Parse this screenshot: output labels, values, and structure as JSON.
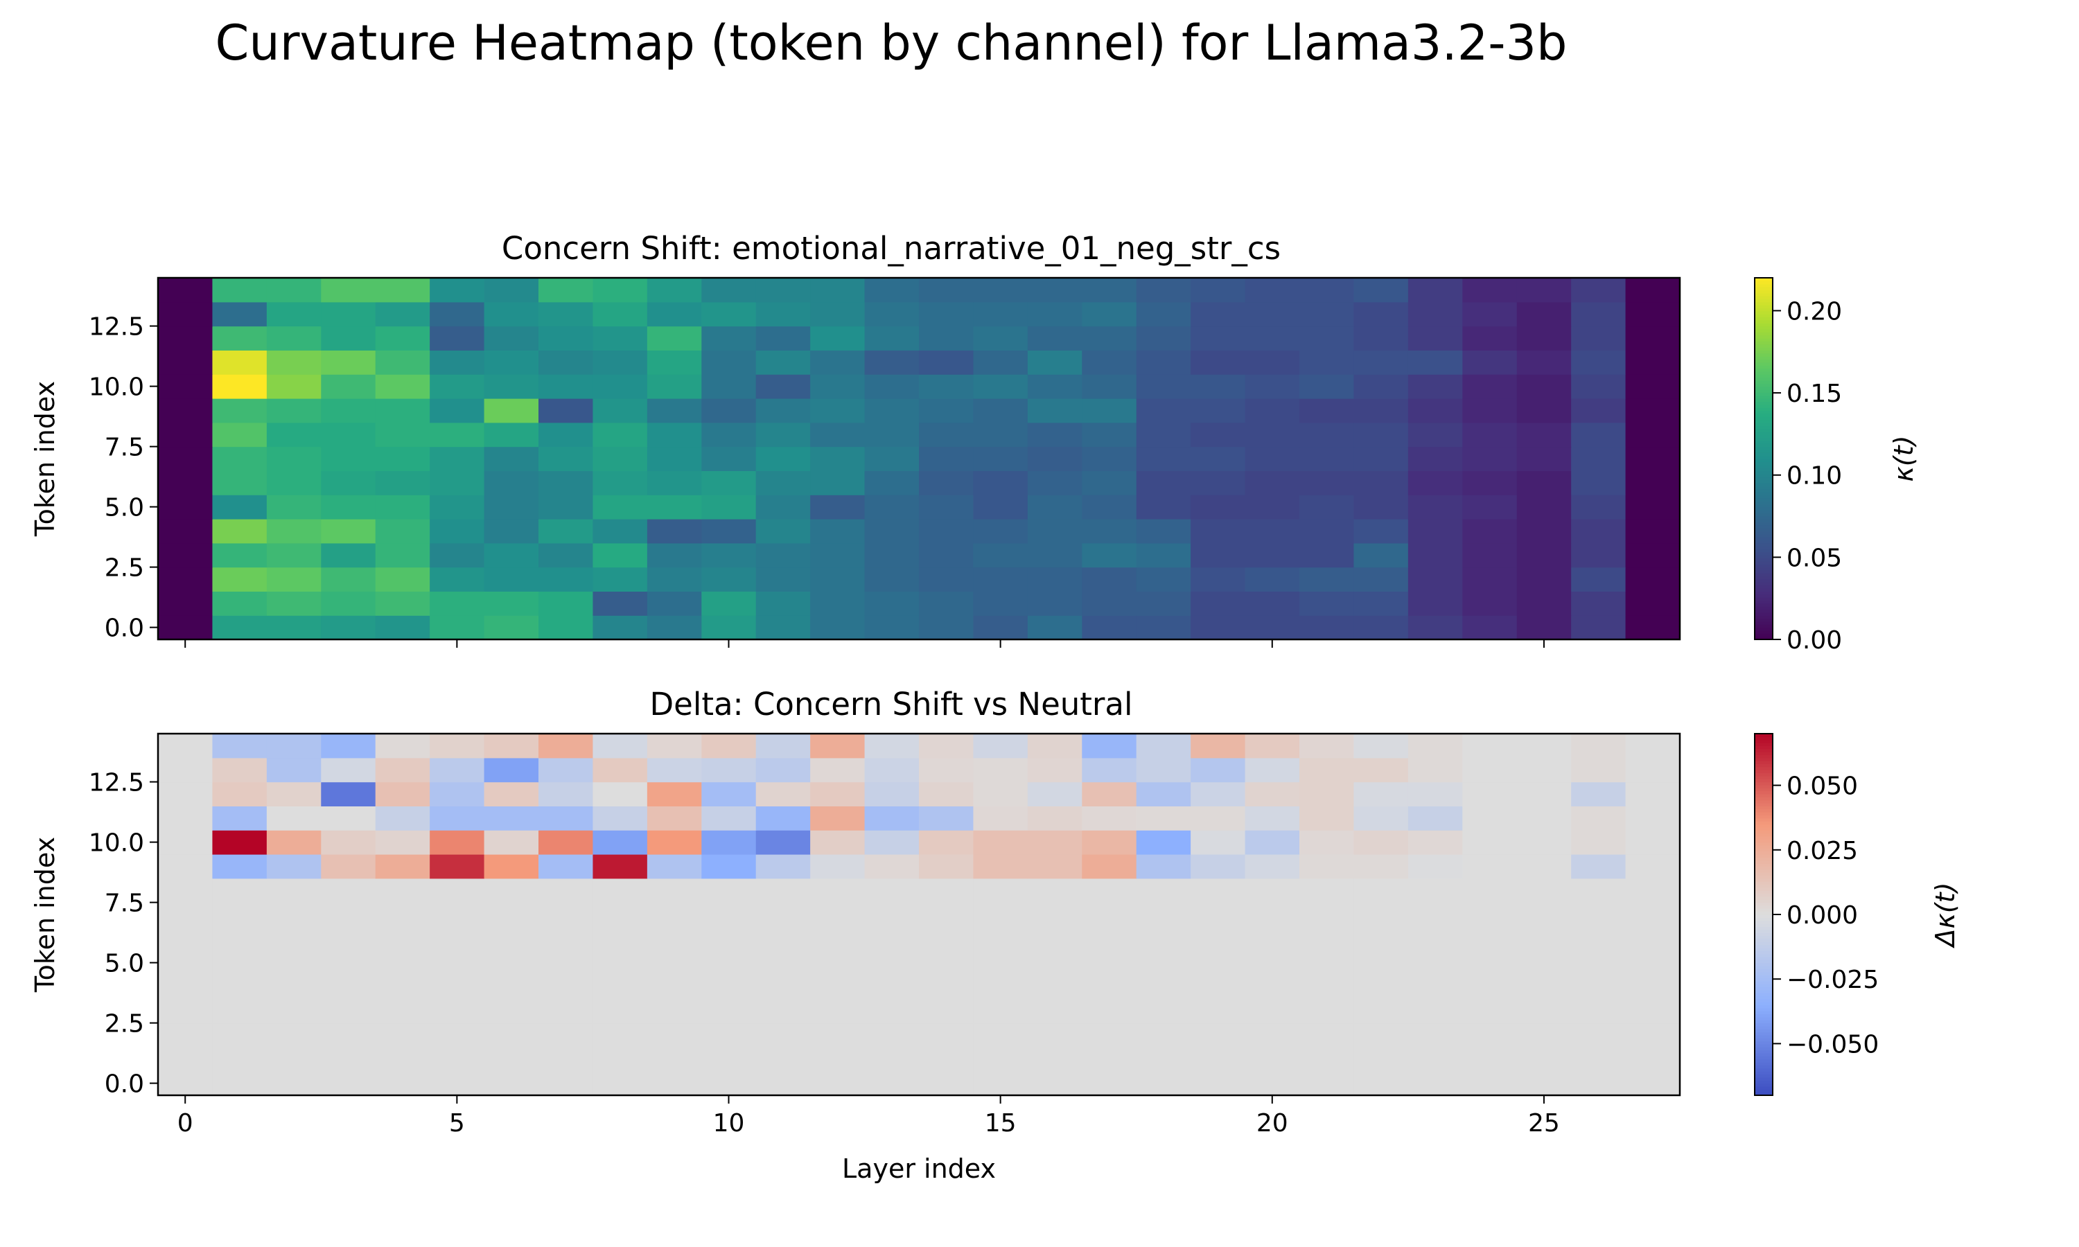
{
  "title": "Curvature Heatmap (token by channel) for Llama3.2-3b",
  "chart_data": [
    {
      "type": "heatmap",
      "title": "Concern Shift: emotional_narrative_01_neg_str_cs",
      "xlabel": "",
      "ylabel": "Token index",
      "x": [
        0,
        1,
        2,
        3,
        4,
        5,
        6,
        7,
        8,
        9,
        10,
        11,
        12,
        13,
        14,
        15,
        16,
        17,
        18,
        19,
        20,
        21,
        22,
        23,
        24,
        25,
        26,
        27
      ],
      "y": [
        0,
        1,
        2,
        3,
        4,
        5,
        6,
        7,
        8,
        9,
        10,
        11,
        12,
        13,
        14
      ],
      "xlim": [
        -0.5,
        27.5
      ],
      "ylim": [
        -0.5,
        14.5
      ],
      "xticks": [
        0,
        5,
        10,
        15,
        20,
        25
      ],
      "yticks": [
        0.0,
        2.5,
        5.0,
        7.5,
        10.0,
        12.5
      ],
      "ytick_labels": [
        "0.0",
        "2.5",
        "5.0",
        "7.5",
        "10.0",
        "12.5"
      ],
      "colormap": "viridis",
      "colorbar_label": "κ(t)",
      "colorbar_ticks": [
        0.0,
        0.05,
        0.1,
        0.15,
        0.2
      ],
      "colorbar_tick_labels": [
        "0.00",
        "0.05",
        "0.10",
        "0.15",
        "0.20"
      ],
      "vmin": 0.0,
      "vmax": 0.22,
      "values": [
        [
          0,
          0.125,
          0.125,
          0.12,
          0.115,
          0.14,
          0.145,
          0.135,
          0.1,
          0.09,
          0.12,
          0.1,
          0.085,
          0.08,
          0.075,
          0.065,
          0.08,
          0.06,
          0.06,
          0.05,
          0.05,
          0.05,
          0.05,
          0.04,
          0.03,
          0.02,
          0.04,
          0
        ],
        [
          0,
          0.145,
          0.15,
          0.145,
          0.15,
          0.14,
          0.14,
          0.135,
          0.065,
          0.08,
          0.125,
          0.1,
          0.085,
          0.08,
          0.075,
          0.07,
          0.07,
          0.065,
          0.065,
          0.05,
          0.05,
          0.055,
          0.055,
          0.035,
          0.025,
          0.02,
          0.04,
          0
        ],
        [
          0,
          0.17,
          0.165,
          0.15,
          0.16,
          0.115,
          0.11,
          0.11,
          0.115,
          0.095,
          0.1,
          0.09,
          0.085,
          0.075,
          0.07,
          0.07,
          0.07,
          0.065,
          0.07,
          0.055,
          0.06,
          0.065,
          0.065,
          0.035,
          0.025,
          0.02,
          0.05,
          0
        ],
        [
          0,
          0.145,
          0.15,
          0.125,
          0.145,
          0.1,
          0.11,
          0.1,
          0.135,
          0.09,
          0.095,
          0.09,
          0.085,
          0.075,
          0.07,
          0.075,
          0.075,
          0.085,
          0.08,
          0.05,
          0.05,
          0.05,
          0.075,
          0.035,
          0.025,
          0.02,
          0.04,
          0
        ],
        [
          0,
          0.175,
          0.16,
          0.165,
          0.145,
          0.11,
          0.095,
          0.12,
          0.105,
          0.065,
          0.07,
          0.1,
          0.085,
          0.075,
          0.07,
          0.07,
          0.075,
          0.075,
          0.07,
          0.05,
          0.05,
          0.05,
          0.055,
          0.035,
          0.025,
          0.02,
          0.04,
          0
        ],
        [
          0,
          0.11,
          0.145,
          0.14,
          0.14,
          0.115,
          0.095,
          0.1,
          0.13,
          0.13,
          0.125,
          0.095,
          0.065,
          0.075,
          0.07,
          0.06,
          0.075,
          0.07,
          0.05,
          0.045,
          0.045,
          0.05,
          0.045,
          0.035,
          0.03,
          0.02,
          0.045,
          0
        ],
        [
          0,
          0.145,
          0.14,
          0.13,
          0.125,
          0.12,
          0.095,
          0.1,
          0.12,
          0.115,
          0.12,
          0.1,
          0.1,
          0.08,
          0.065,
          0.06,
          0.07,
          0.075,
          0.05,
          0.05,
          0.045,
          0.045,
          0.045,
          0.03,
          0.025,
          0.02,
          0.05,
          0
        ],
        [
          0,
          0.145,
          0.14,
          0.135,
          0.135,
          0.12,
          0.1,
          0.115,
          0.125,
          0.11,
          0.095,
          0.11,
          0.1,
          0.09,
          0.07,
          0.07,
          0.065,
          0.07,
          0.055,
          0.055,
          0.05,
          0.05,
          0.05,
          0.035,
          0.03,
          0.025,
          0.05,
          0
        ],
        [
          0,
          0.16,
          0.135,
          0.135,
          0.14,
          0.14,
          0.13,
          0.11,
          0.13,
          0.11,
          0.09,
          0.1,
          0.085,
          0.085,
          0.075,
          0.075,
          0.07,
          0.075,
          0.055,
          0.05,
          0.05,
          0.05,
          0.05,
          0.04,
          0.03,
          0.025,
          0.05,
          0
        ],
        [
          0,
          0.15,
          0.145,
          0.14,
          0.14,
          0.11,
          0.17,
          0.06,
          0.115,
          0.09,
          0.075,
          0.09,
          0.095,
          0.085,
          0.08,
          0.075,
          0.09,
          0.09,
          0.055,
          0.055,
          0.05,
          0.045,
          0.045,
          0.035,
          0.025,
          0.02,
          0.04,
          0
        ],
        [
          0,
          0.22,
          0.18,
          0.15,
          0.165,
          0.12,
          0.115,
          0.11,
          0.11,
          0.125,
          0.085,
          0.065,
          0.09,
          0.08,
          0.085,
          0.09,
          0.08,
          0.075,
          0.06,
          0.06,
          0.055,
          0.06,
          0.05,
          0.04,
          0.025,
          0.02,
          0.045,
          0
        ],
        [
          0,
          0.21,
          0.175,
          0.17,
          0.15,
          0.105,
          0.11,
          0.1,
          0.105,
          0.13,
          0.085,
          0.1,
          0.085,
          0.065,
          0.06,
          0.075,
          0.095,
          0.07,
          0.06,
          0.05,
          0.05,
          0.055,
          0.055,
          0.055,
          0.035,
          0.025,
          0.05,
          0
        ],
        [
          0,
          0.15,
          0.145,
          0.13,
          0.14,
          0.065,
          0.1,
          0.11,
          0.115,
          0.145,
          0.09,
          0.08,
          0.11,
          0.09,
          0.08,
          0.085,
          0.075,
          0.075,
          0.065,
          0.055,
          0.055,
          0.055,
          0.05,
          0.04,
          0.025,
          0.02,
          0.045,
          0
        ],
        [
          0,
          0.08,
          0.13,
          0.13,
          0.12,
          0.075,
          0.11,
          0.115,
          0.13,
          0.11,
          0.115,
          0.105,
          0.1,
          0.085,
          0.08,
          0.08,
          0.08,
          0.085,
          0.07,
          0.055,
          0.055,
          0.055,
          0.05,
          0.04,
          0.03,
          0.02,
          0.045,
          0
        ],
        [
          0,
          0.145,
          0.145,
          0.16,
          0.16,
          0.11,
          0.105,
          0.145,
          0.14,
          0.12,
          0.1,
          0.1,
          0.1,
          0.08,
          0.075,
          0.075,
          0.075,
          0.075,
          0.065,
          0.06,
          0.055,
          0.055,
          0.06,
          0.04,
          0.025,
          0.025,
          0.04,
          0
        ]
      ]
    },
    {
      "type": "heatmap",
      "title": "Delta: Concern Shift vs Neutral",
      "xlabel": "Layer index",
      "ylabel": "Token index",
      "x": [
        0,
        1,
        2,
        3,
        4,
        5,
        6,
        7,
        8,
        9,
        10,
        11,
        12,
        13,
        14,
        15,
        16,
        17,
        18,
        19,
        20,
        21,
        22,
        23,
        24,
        25,
        26,
        27
      ],
      "y": [
        0,
        1,
        2,
        3,
        4,
        5,
        6,
        7,
        8,
        9,
        10,
        11,
        12,
        13,
        14
      ],
      "xlim": [
        -0.5,
        27.5
      ],
      "ylim": [
        -0.5,
        14.5
      ],
      "xticks": [
        0,
        5,
        10,
        15,
        20,
        25
      ],
      "yticks": [
        0.0,
        2.5,
        5.0,
        7.5,
        10.0,
        12.5
      ],
      "ytick_labels": [
        "0.0",
        "2.5",
        "5.0",
        "7.5",
        "10.0",
        "12.5"
      ],
      "colormap": "coolwarm",
      "colorbar_label": "Δκ(t)",
      "colorbar_ticks": [
        -0.05,
        -0.025,
        0.0,
        0.025,
        0.05
      ],
      "colorbar_tick_labels": [
        "−0.050",
        "−0.025",
        "0.000",
        "0.025",
        "0.050"
      ],
      "vmin": -0.07,
      "vmax": 0.07,
      "values": [
        [
          0,
          0,
          0,
          0,
          0,
          0,
          0,
          0,
          0,
          0,
          0,
          0,
          0,
          0,
          0,
          0,
          0,
          0,
          0,
          0,
          0,
          0,
          0,
          0,
          0,
          0,
          0,
          0
        ],
        [
          0,
          0,
          0,
          0,
          0,
          0,
          0,
          0,
          0,
          0,
          0,
          0,
          0,
          0,
          0,
          0,
          0,
          0,
          0,
          0,
          0,
          0,
          0,
          0,
          0,
          0,
          0,
          0
        ],
        [
          0,
          0,
          0,
          0,
          0,
          0,
          0,
          0,
          0,
          0,
          0,
          0,
          0,
          0,
          0,
          0,
          0,
          0,
          0,
          0,
          0,
          0,
          0,
          0,
          0,
          0,
          0,
          0
        ],
        [
          0,
          0,
          0,
          0,
          0,
          0,
          0,
          0,
          0,
          0,
          0,
          0,
          0,
          0,
          0,
          0,
          0,
          0,
          0,
          0,
          0,
          0,
          0,
          0,
          0,
          0,
          0,
          0
        ],
        [
          0,
          0,
          0,
          0,
          0,
          0,
          0,
          0,
          0,
          0,
          0,
          0,
          0,
          0,
          0,
          0,
          0,
          0,
          0,
          0,
          0,
          0,
          0,
          0,
          0,
          0,
          0,
          0
        ],
        [
          0,
          0,
          0,
          0,
          0,
          0,
          0,
          0,
          0,
          0,
          0,
          0,
          0,
          0,
          0,
          0,
          0,
          0,
          0,
          0,
          0,
          0,
          0,
          0,
          0,
          0,
          0,
          0
        ],
        [
          0,
          0,
          0,
          0,
          0,
          0,
          0,
          0,
          0,
          0,
          0,
          0,
          0,
          0,
          0,
          0,
          0,
          0,
          0,
          0,
          0,
          0,
          0,
          0,
          0,
          0,
          0,
          0
        ],
        [
          0,
          0,
          0,
          0,
          0,
          0,
          0,
          0,
          0,
          0,
          0,
          0,
          0,
          0,
          0,
          0,
          0,
          0,
          0,
          0,
          0,
          0,
          0,
          0,
          0,
          0,
          0,
          0
        ],
        [
          0,
          0,
          0,
          0,
          0,
          0,
          0,
          0,
          0,
          0,
          0,
          0,
          0,
          0,
          0,
          0,
          0,
          0,
          0,
          0,
          0,
          0,
          0,
          0,
          0,
          0,
          0,
          0
        ],
        [
          0,
          -0.03,
          -0.02,
          0.015,
          0.025,
          0.06,
          0.035,
          -0.025,
          0.065,
          -0.02,
          -0.035,
          -0.015,
          -0.003,
          0.003,
          0.008,
          0.015,
          0.015,
          0.025,
          -0.02,
          -0.01,
          -0.005,
          0.002,
          0.002,
          -0.001,
          0,
          0,
          -0.01,
          0
        ],
        [
          0,
          0.07,
          0.025,
          0.008,
          0.005,
          0.04,
          0.005,
          0.04,
          -0.04,
          0.035,
          -0.04,
          -0.05,
          0.008,
          -0.01,
          0.01,
          0.015,
          0.015,
          0.02,
          -0.035,
          -0.002,
          -0.015,
          0.003,
          0.005,
          0.003,
          0,
          0,
          0.002,
          0
        ],
        [
          0,
          -0.025,
          0,
          0,
          -0.01,
          -0.025,
          -0.025,
          -0.025,
          -0.01,
          0.015,
          -0.01,
          -0.03,
          0.025,
          -0.025,
          -0.02,
          0.003,
          0.005,
          0.003,
          0.002,
          0.002,
          -0.005,
          0.006,
          -0.005,
          -0.01,
          0,
          0,
          0.002,
          0
        ],
        [
          0,
          0.01,
          0.006,
          -0.055,
          0.015,
          -0.02,
          0.01,
          -0.01,
          0,
          0.03,
          -0.025,
          0.005,
          0.01,
          -0.01,
          0.005,
          0.002,
          -0.005,
          0.015,
          -0.02,
          -0.008,
          0.005,
          0.006,
          -0.003,
          -0.003,
          0,
          0,
          -0.01,
          0
        ],
        [
          0,
          0.008,
          -0.02,
          -0.005,
          0.01,
          -0.015,
          -0.04,
          -0.015,
          0.01,
          -0.008,
          -0.01,
          -0.015,
          0.003,
          -0.008,
          0.003,
          0.002,
          0.004,
          -0.015,
          -0.01,
          -0.018,
          -0.005,
          0.006,
          0.006,
          0.002,
          0,
          0,
          0.002,
          0
        ],
        [
          0,
          -0.02,
          -0.02,
          -0.03,
          0.002,
          0.006,
          0.01,
          0.025,
          -0.005,
          0.004,
          0.01,
          -0.01,
          0.025,
          -0.005,
          0.004,
          -0.006,
          0.005,
          -0.03,
          -0.01,
          0.02,
          0.01,
          0.004,
          -0.002,
          0.002,
          0,
          0,
          0.002,
          0
        ]
      ]
    }
  ]
}
